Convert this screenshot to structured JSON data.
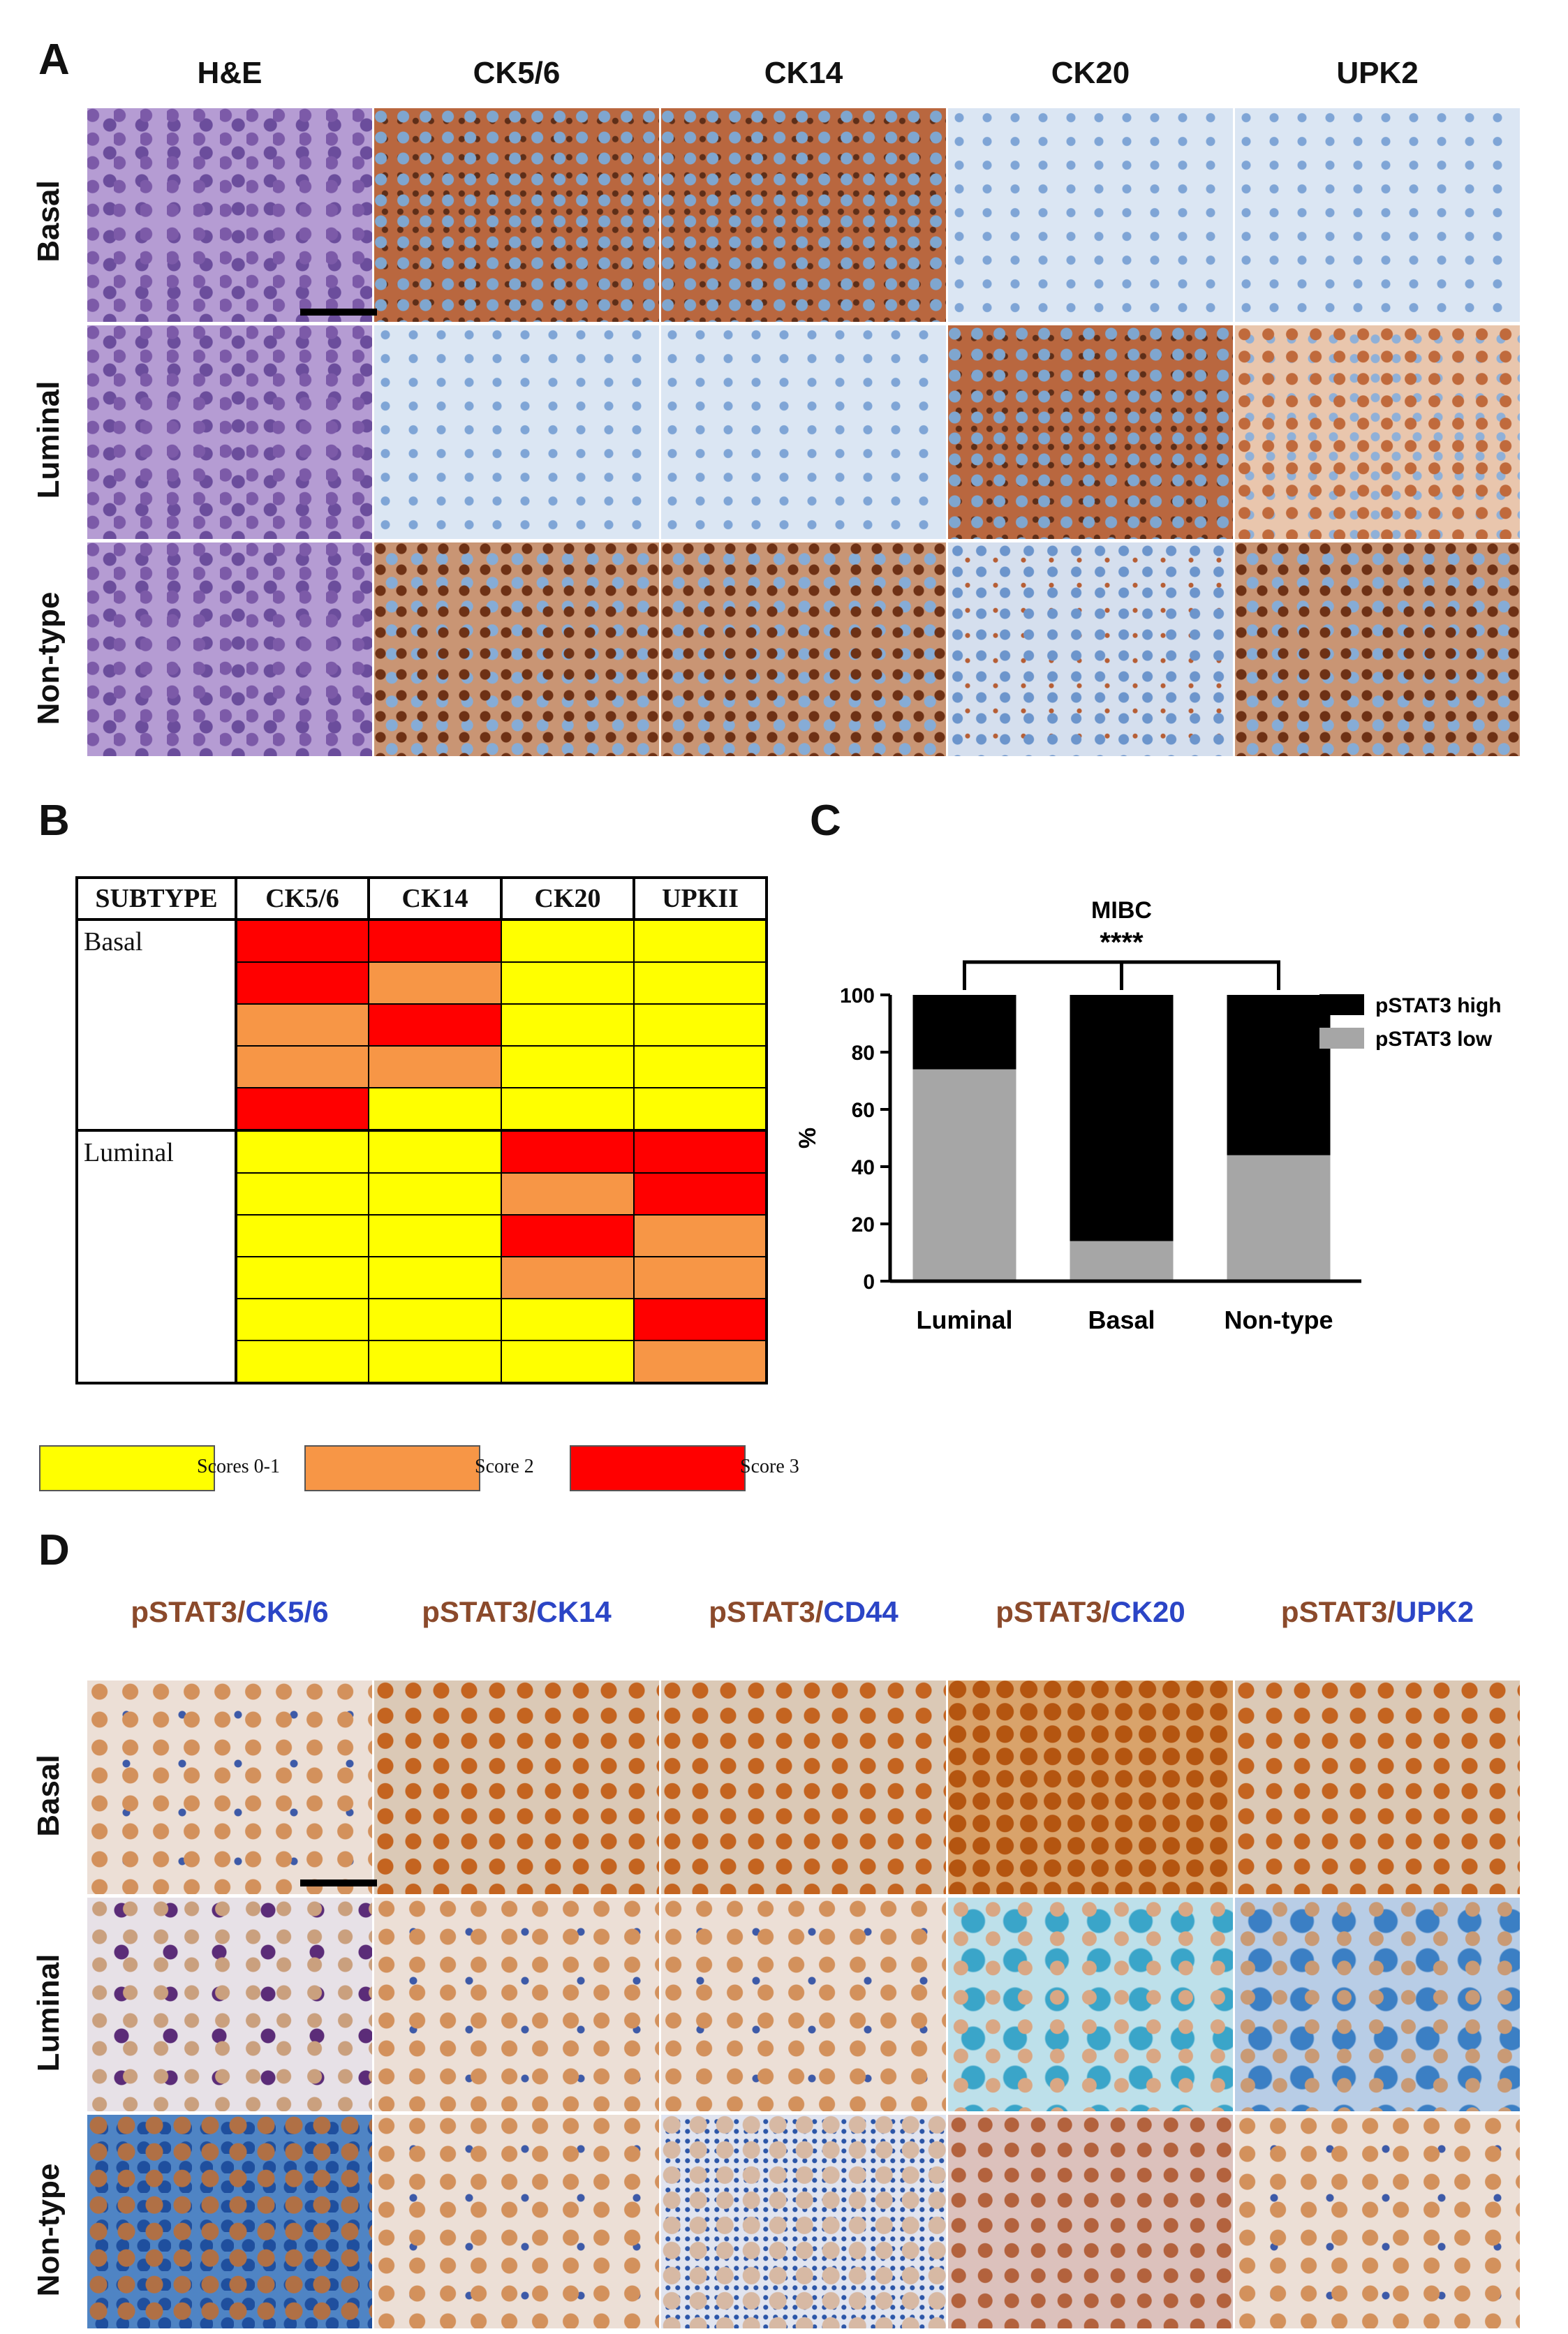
{
  "panels": {
    "a": "A",
    "b": "B",
    "c": "C",
    "d": "D"
  },
  "panel_a": {
    "columns": [
      "H&E",
      "CK5/6",
      "CK14",
      "CK20",
      "UPK2"
    ],
    "rows": [
      "Basal",
      "Luminal",
      "Non-type"
    ]
  },
  "panel_b": {
    "headers": [
      "SUBTYPE",
      "CK5/6",
      "CK14",
      "CK20",
      "UPKII"
    ],
    "groups": [
      {
        "name": "Basal",
        "rows": [
          [
            3,
            3,
            1,
            1
          ],
          [
            3,
            2,
            1,
            1
          ],
          [
            2,
            3,
            1,
            1
          ],
          [
            2,
            2,
            1,
            1
          ],
          [
            3,
            1,
            1,
            1
          ]
        ]
      },
      {
        "name": "Luminal",
        "rows": [
          [
            1,
            1,
            3,
            3
          ],
          [
            1,
            1,
            2,
            3
          ],
          [
            1,
            1,
            3,
            2
          ],
          [
            1,
            1,
            2,
            2
          ],
          [
            1,
            1,
            1,
            3
          ],
          [
            1,
            1,
            1,
            2
          ]
        ]
      }
    ],
    "score_colors": {
      "1": "#ffff00",
      "2": "#f79646",
      "3": "#ff0000"
    },
    "legend": [
      {
        "label": "Scores 0-1",
        "color": "#ffff00"
      },
      {
        "label": "Score 2",
        "color": "#f79646"
      },
      {
        "label": "Score 3",
        "color": "#ff0000"
      }
    ]
  },
  "chart_data": {
    "type": "bar",
    "stacked": true,
    "title": "MIBC",
    "significance": "****",
    "categories": [
      "Luminal",
      "Basal",
      "Non-type"
    ],
    "series": [
      {
        "name": "pSTAT3 low",
        "color": "#a6a6a6",
        "values": [
          74,
          14,
          44
        ]
      },
      {
        "name": "pSTAT3 high",
        "color": "#000000",
        "values": [
          26,
          86,
          56
        ]
      }
    ],
    "ylabel": "%",
    "ylim": [
      0,
      100
    ],
    "yticks": [
      0,
      20,
      40,
      60,
      80,
      100
    ],
    "legend_position": "top-right",
    "grid": false
  },
  "panel_d": {
    "columns": [
      {
        "first": "pSTAT3",
        "sep": "/",
        "second": "CK5/6"
      },
      {
        "first": "pSTAT3",
        "sep": "/",
        "second": "CK14"
      },
      {
        "first": "pSTAT3",
        "sep": "/",
        "second": "CD44"
      },
      {
        "first": "pSTAT3",
        "sep": "/",
        "second": "CK20"
      },
      {
        "first": "pSTAT3",
        "sep": "/",
        "second": "UPK2"
      }
    ],
    "rows": [
      "Basal",
      "Luminal",
      "Non-type"
    ],
    "colors": {
      "pstat3": "#8b4a2b",
      "marker": "#2b45c6"
    }
  }
}
